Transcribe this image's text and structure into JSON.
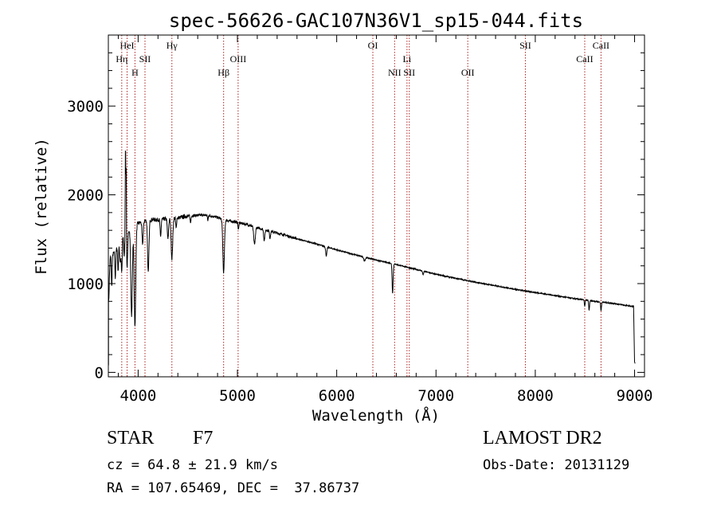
{
  "chart_data": {
    "type": "line",
    "title": "spec-56626-GAC107N36V1_sp15-044.fits",
    "xlabel": "Wavelength (Å)",
    "ylabel": "Flux (relative)",
    "xlim": [
      3700,
      9100
    ],
    "ylim": [
      -50,
      3800
    ],
    "x_ticks": [
      4000,
      5000,
      6000,
      7000,
      8000,
      9000
    ],
    "y_ticks": [
      0,
      1000,
      2000,
      3000
    ],
    "grid": false,
    "line_color": "#000000",
    "marker_color": "#aa2222",
    "continuum": [
      [
        3702,
        900
      ],
      [
        3720,
        1300
      ],
      [
        3760,
        1350
      ],
      [
        3800,
        1420
      ],
      [
        3850,
        1550
      ],
      [
        3900,
        1600
      ],
      [
        3950,
        1660
      ],
      [
        4000,
        1680
      ],
      [
        4050,
        1700
      ],
      [
        4100,
        1720
      ],
      [
        4200,
        1720
      ],
      [
        4300,
        1730
      ],
      [
        4400,
        1740
      ],
      [
        4500,
        1760
      ],
      [
        4600,
        1770
      ],
      [
        4700,
        1770
      ],
      [
        4800,
        1745
      ],
      [
        4900,
        1710
      ],
      [
        5000,
        1690
      ],
      [
        5100,
        1665
      ],
      [
        5200,
        1630
      ],
      [
        5300,
        1600
      ],
      [
        5400,
        1570
      ],
      [
        5500,
        1540
      ],
      [
        5600,
        1505
      ],
      [
        5800,
        1445
      ],
      [
        6000,
        1380
      ],
      [
        6200,
        1320
      ],
      [
        6400,
        1265
      ],
      [
        6600,
        1215
      ],
      [
        6800,
        1160
      ],
      [
        7000,
        1105
      ],
      [
        7200,
        1060
      ],
      [
        7400,
        1015
      ],
      [
        7600,
        975
      ],
      [
        7800,
        935
      ],
      [
        8000,
        900
      ],
      [
        8200,
        865
      ],
      [
        8400,
        830
      ],
      [
        8600,
        800
      ],
      [
        8800,
        775
      ],
      [
        8990,
        740
      ]
    ],
    "absorption_lines": [
      [
        3705,
        150,
        3
      ],
      [
        3734,
        350,
        4
      ],
      [
        3770,
        300,
        4
      ],
      [
        3798,
        280,
        4
      ],
      [
        3820,
        220,
        6
      ],
      [
        3835,
        380,
        5
      ],
      [
        3860,
        250,
        5
      ],
      [
        3889,
        400,
        6
      ],
      [
        3934,
        1000,
        8
      ],
      [
        3968,
        1150,
        8
      ],
      [
        4045,
        250,
        6
      ],
      [
        4102,
        600,
        7
      ],
      [
        4226,
        200,
        5
      ],
      [
        4300,
        230,
        6
      ],
      [
        4340,
        450,
        8
      ],
      [
        4383,
        120,
        4
      ],
      [
        4528,
        80,
        4
      ],
      [
        4702,
        60,
        4
      ],
      [
        4861,
        600,
        8
      ],
      [
        5010,
        80,
        4
      ],
      [
        5172,
        200,
        8
      ],
      [
        5270,
        120,
        6
      ],
      [
        5328,
        80,
        5
      ],
      [
        5895,
        100,
        6
      ],
      [
        6280,
        40,
        8
      ],
      [
        6563,
        330,
        5
      ],
      [
        6870,
        40,
        5
      ],
      [
        8498,
        70,
        4
      ],
      [
        8542,
        110,
        4
      ],
      [
        8662,
        100,
        4
      ]
    ],
    "emission_peaks": [
      [
        3873,
        1000,
        3
      ],
      [
        3880,
        800,
        2
      ]
    ],
    "spectrum_end": [
      [
        8990,
        740
      ],
      [
        9000,
        120
      ],
      [
        9005,
        100
      ]
    ],
    "noise_amplitude": 20,
    "line_markers": [
      {
        "label": "HeI",
        "x": 3889,
        "row": 0
      },
      {
        "label": "Hη",
        "x": 3835,
        "row": 1
      },
      {
        "label": "SII",
        "x": 4069,
        "row": 1
      },
      {
        "label": "H",
        "x": 3968,
        "row": 2
      },
      {
        "label": "Hγ",
        "x": 4340,
        "row": 0
      },
      {
        "label": "OIII",
        "x": 5007,
        "row": 1
      },
      {
        "label": "Hβ",
        "x": 4861,
        "row": 2
      },
      {
        "label": "OI",
        "x": 6364,
        "row": 0
      },
      {
        "label": "NII",
        "x": 6583,
        "row": 2
      },
      {
        "label": "SII",
        "x": 6731,
        "row": 2
      },
      {
        "label": "Li",
        "x": 6708,
        "row": 1
      },
      {
        "label": "OII",
        "x": 7320,
        "row": 2
      },
      {
        "label": "SII",
        "x": 7900,
        "row": 0
      },
      {
        "label": "CaII",
        "x": 8498,
        "row": 1
      },
      {
        "label": "CaII",
        "x": 8662,
        "row": 0
      }
    ]
  },
  "info": {
    "class_label": "STAR",
    "subclass": "F7",
    "survey": "LAMOST DR2",
    "cz": "cz = 64.8 ± 21.9 km/s",
    "obs_date": "Obs-Date: 20131129",
    "radec": "RA = 107.65469, DEC =  37.86737"
  }
}
